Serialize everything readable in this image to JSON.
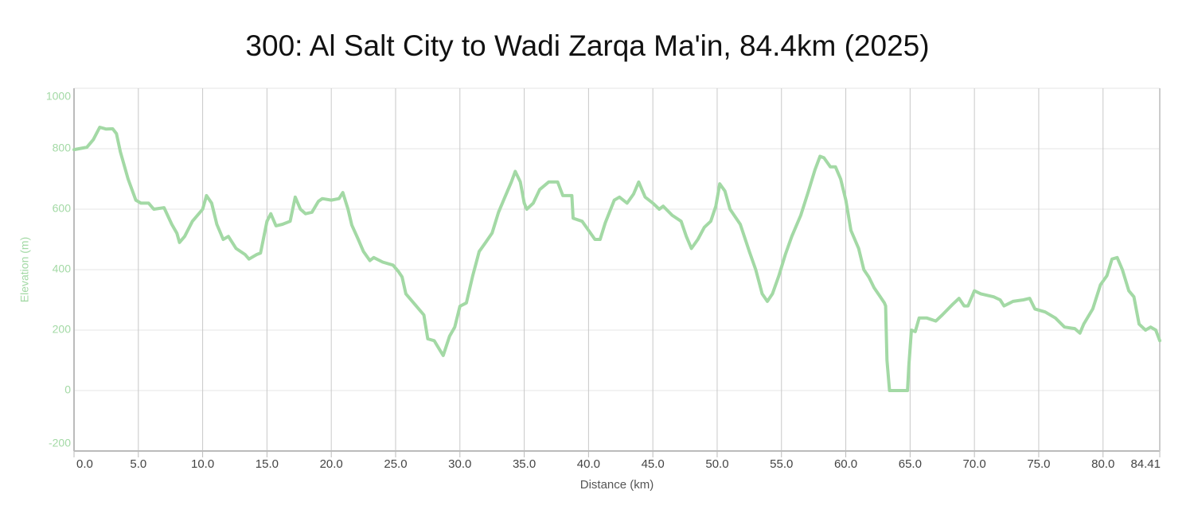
{
  "chart_data": {
    "type": "line",
    "title": "300: Al Salt City to Wadi Zarqa Ma'in, 84.4km (2025)",
    "xlabel": "Distance (km)",
    "ylabel": "Elevation (m)",
    "color": "#a3d9a5",
    "grid": true,
    "xlim": [
      0,
      84.41
    ],
    "xticks": [
      {
        "value": 0,
        "label": "0.0"
      },
      {
        "value": 5,
        "label": "5.0"
      },
      {
        "value": 10,
        "label": "10.0"
      },
      {
        "value": 15,
        "label": "15.0"
      },
      {
        "value": 20,
        "label": "20.0"
      },
      {
        "value": 25,
        "label": "25.0"
      },
      {
        "value": 30,
        "label": "30.0"
      },
      {
        "value": 35,
        "label": "35.0"
      },
      {
        "value": 40,
        "label": "40.0"
      },
      {
        "value": 45,
        "label": "45.0"
      },
      {
        "value": 50,
        "label": "50.0"
      },
      {
        "value": 55,
        "label": "55.0"
      },
      {
        "value": 60,
        "label": "60.0"
      },
      {
        "value": 65,
        "label": "65.0"
      },
      {
        "value": 70,
        "label": "70.0"
      },
      {
        "value": 75,
        "label": "75.0"
      },
      {
        "value": 80,
        "label": "80.0"
      },
      84.41
    ],
    "ylim": [
      -200,
      1000
    ],
    "yticks": [
      -200,
      0,
      200,
      400,
      600,
      800,
      1000
    ],
    "x": [
      0,
      1,
      1.5,
      2,
      2.5,
      3,
      3.3,
      3.6,
      4.2,
      4.8,
      5.2,
      5.8,
      6.2,
      7,
      7.6,
      8,
      8.2,
      8.6,
      9.2,
      10,
      10.3,
      10.7,
      11.1,
      11.6,
      12,
      12.6,
      13.3,
      13.6,
      14.2,
      14.5,
      15,
      15.3,
      15.7,
      16.2,
      16.8,
      17.2,
      17.6,
      18,
      18.5,
      19,
      19.3,
      20,
      20.6,
      20.9,
      21.3,
      21.6,
      22.1,
      22.5,
      23,
      23.3,
      24,
      24.8,
      25.2,
      25.5,
      25.8,
      26.5,
      27.2,
      27.5,
      28,
      28.5,
      28.7,
      29.2,
      29.6,
      30,
      30.5,
      31,
      31.5,
      32,
      32.5,
      33,
      33.5,
      34,
      34.3,
      34.7,
      35,
      35.2,
      35.7,
      36.2,
      36.9,
      37.6,
      38,
      38.7,
      38.8,
      39.5,
      40,
      40.5,
      40.9,
      41.3,
      42,
      42.4,
      43,
      43.5,
      43.9,
      44.4,
      45,
      45.5,
      45.8,
      46.5,
      47.2,
      47.6,
      48,
      48.5,
      49,
      49.5,
      49.9,
      50.2,
      50.6,
      51,
      51.8,
      52.5,
      53,
      53.5,
      53.9,
      54.3,
      54.8,
      55.3,
      55.8,
      56.5,
      57.1,
      57.6,
      58,
      58.3,
      58.8,
      59.2,
      59.6,
      60,
      60.4,
      61,
      61.4,
      61.8,
      62.2,
      62.6,
      63,
      63.1,
      63.2,
      63.4,
      64.8,
      64.9,
      65.1,
      65.4,
      65.7,
      66.3,
      67,
      67.5,
      68.3,
      68.8,
      69.2,
      69.5,
      70,
      70.5,
      71.5,
      72,
      72.3,
      73,
      73.8,
      74.3,
      74.7,
      75.5,
      76.3,
      77,
      77.8,
      78.2,
      78.5,
      79.2,
      79.8,
      80.3,
      80.7,
      81.1,
      81.5,
      82,
      82.4,
      82.8,
      83.3,
      83.7,
      84.1,
      84.41
    ],
    "values": [
      797,
      805,
      830,
      871,
      865,
      866,
      850,
      790,
      700,
      630,
      620,
      620,
      600,
      605,
      550,
      520,
      490,
      510,
      560,
      600,
      645,
      620,
      550,
      500,
      510,
      470,
      450,
      435,
      450,
      455,
      560,
      585,
      545,
      550,
      560,
      640,
      600,
      585,
      590,
      626,
      635,
      630,
      635,
      655,
      600,
      547,
      500,
      460,
      430,
      440,
      425,
      415,
      395,
      376,
      320,
      285,
      250,
      171,
      165,
      130,
      116,
      180,
      210,
      279,
      290,
      380,
      460,
      490,
      521,
      590,
      640,
      690,
      725,
      690,
      620,
      600,
      620,
      665,
      690,
      690,
      645,
      645,
      570,
      560,
      530,
      500,
      500,
      555,
      630,
      640,
      620,
      650,
      690,
      640,
      620,
      600,
      610,
      580,
      560,
      510,
      470,
      500,
      540,
      560,
      610,
      684,
      660,
      600,
      550,
      460,
      400,
      320,
      295,
      320,
      380,
      450,
      510,
      580,
      660,
      730,
      775,
      770,
      740,
      740,
      700,
      630,
      530,
      470,
      400,
      375,
      340,
      315,
      290,
      280,
      100,
      0,
      0,
      80,
      200,
      195,
      240,
      240,
      230,
      250,
      285,
      305,
      280,
      280,
      330,
      320,
      310,
      300,
      280,
      295,
      300,
      305,
      270,
      260,
      240,
      210,
      205,
      190,
      220,
      270,
      350,
      380,
      435,
      440,
      400,
      330,
      310,
      220,
      200,
      210,
      200,
      165
    ]
  }
}
